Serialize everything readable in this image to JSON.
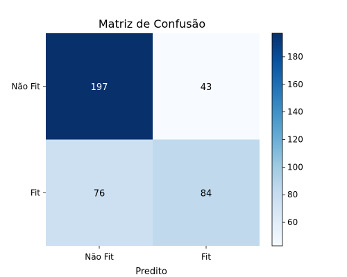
{
  "chart_data": {
    "type": "heatmap",
    "title": "Matriz de Confusão",
    "xlabel": "Predito",
    "ylabel": "",
    "x_categories": [
      "Não Fit",
      "Fit"
    ],
    "y_categories": [
      "Não Fit",
      "Fit"
    ],
    "values": [
      [
        197,
        43
      ],
      [
        76,
        84
      ]
    ],
    "colorbar": {
      "min": 43,
      "max": 197,
      "ticks": [
        60,
        80,
        100,
        120,
        140,
        160,
        180
      ],
      "tick_labels": [
        "60",
        "80",
        "100",
        "120",
        "140",
        "160",
        "180"
      ]
    },
    "colormap": "Blues",
    "colors": {
      "low": "#f7fbff",
      "high": "#08306b",
      "text_light": "#ffffff",
      "text_dark": "#000000"
    }
  }
}
